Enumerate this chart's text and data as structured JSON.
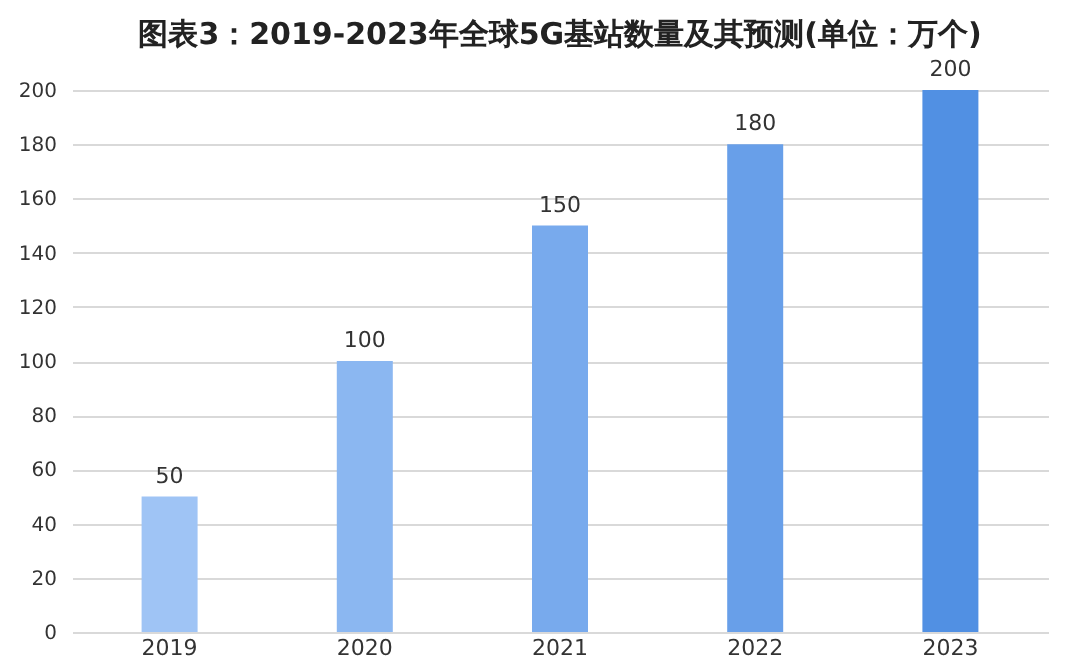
{
  "chart_data": {
    "type": "bar",
    "title": "图表3：2019-2023年全球5G基站数量及其预测(单位：万个)",
    "categories": [
      "2019",
      "2020",
      "2021",
      "2022",
      "2023"
    ],
    "values": [
      50,
      100,
      150,
      180,
      200
    ],
    "colors": [
      "#9fc4f5",
      "#8bb7f1",
      "#78aaed",
      "#689fe9",
      "#5190e3"
    ],
    "ylim": [
      0,
      200
    ],
    "yticks": [
      0,
      20,
      40,
      60,
      80,
      100,
      120,
      140,
      160,
      180,
      200
    ],
    "grid": "y",
    "data_labels": true
  }
}
